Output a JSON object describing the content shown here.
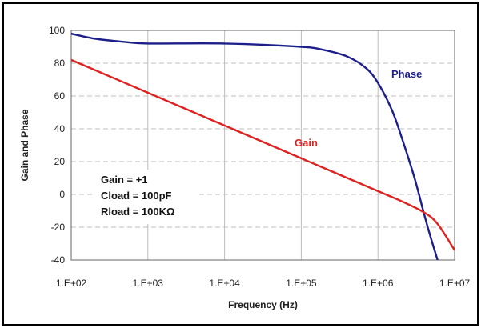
{
  "chart_data": {
    "type": "line",
    "title": "",
    "xlabel": "Frequency (Hz)",
    "ylabel": "Gain and Phase",
    "xscale": "log",
    "xlim": [
      100,
      10000000
    ],
    "ylim": [
      -40,
      100
    ],
    "x_ticks": [
      "1.E+02",
      "1.E+03",
      "1.E+04",
      "1.E+05",
      "1.E+06",
      "1.E+07"
    ],
    "y_ticks": [
      "100",
      "80",
      "60",
      "40",
      "20",
      "0",
      "-20",
      "-40"
    ],
    "grid": "horizontal dashed, vertical at decades",
    "series": [
      {
        "name": "Phase",
        "color": "#1c1f8a",
        "x": [
          100,
          200,
          500,
          1000,
          10000,
          100000,
          200000,
          400000,
          700000,
          1000000,
          1500000,
          2000000,
          3000000,
          4000000,
          5000000,
          6000000
        ],
        "y": [
          98,
          95,
          93,
          92,
          92,
          90,
          88,
          84,
          77,
          68,
          52,
          36,
          10,
          -12,
          -28,
          -40
        ]
      },
      {
        "name": "Gain",
        "color": "#dd2222",
        "x": [
          100,
          1000,
          10000,
          100000,
          1000000,
          2000000,
          4000000,
          6000000,
          10000000
        ],
        "y": [
          82,
          62,
          42,
          22,
          2,
          -4,
          -11,
          -18,
          -34
        ]
      }
    ],
    "annotations": [
      "Gain = +1",
      "Cload = 100pF",
      "Rload = 100KΩ"
    ]
  }
}
